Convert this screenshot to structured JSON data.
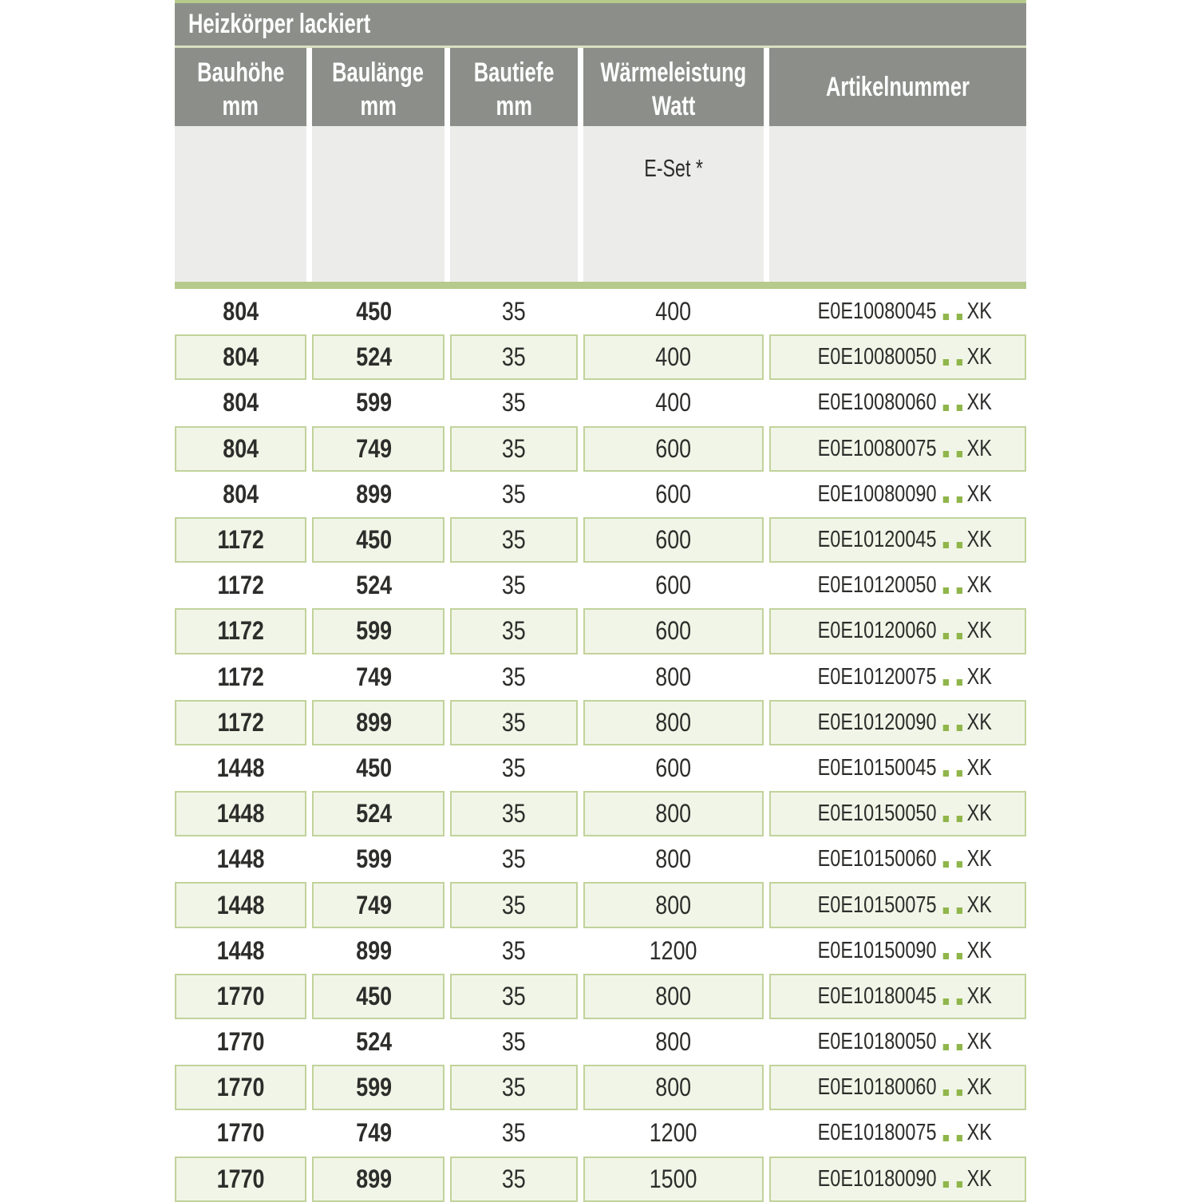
{
  "table": {
    "title": "Heizkörper lackiert",
    "columns": [
      {
        "line1": "Bauhöhe",
        "line2": "mm"
      },
      {
        "line1": "Baulänge",
        "line2": "mm"
      },
      {
        "line1": "Bautiefe",
        "line2": "mm"
      },
      {
        "line1": "Wärmeleistung",
        "line2": "Watt"
      },
      {
        "line1": "Artikelnummer",
        "line2": ""
      }
    ],
    "subheader": {
      "eset_label": "E-Set *"
    },
    "rows": [
      {
        "bauhoehe": "804",
        "baulaenge": "450",
        "bautiefe": "35",
        "watt": "400",
        "article_prefix": "E0E10080045",
        "article_suffix": "XK"
      },
      {
        "bauhoehe": "804",
        "baulaenge": "524",
        "bautiefe": "35",
        "watt": "400",
        "article_prefix": "E0E10080050",
        "article_suffix": "XK"
      },
      {
        "bauhoehe": "804",
        "baulaenge": "599",
        "bautiefe": "35",
        "watt": "400",
        "article_prefix": "E0E10080060",
        "article_suffix": "XK"
      },
      {
        "bauhoehe": "804",
        "baulaenge": "749",
        "bautiefe": "35",
        "watt": "600",
        "article_prefix": "E0E10080075",
        "article_suffix": "XK"
      },
      {
        "bauhoehe": "804",
        "baulaenge": "899",
        "bautiefe": "35",
        "watt": "600",
        "article_prefix": "E0E10080090",
        "article_suffix": "XK"
      },
      {
        "bauhoehe": "1172",
        "baulaenge": "450",
        "bautiefe": "35",
        "watt": "600",
        "article_prefix": "E0E10120045",
        "article_suffix": "XK"
      },
      {
        "bauhoehe": "1172",
        "baulaenge": "524",
        "bautiefe": "35",
        "watt": "600",
        "article_prefix": "E0E10120050",
        "article_suffix": "XK"
      },
      {
        "bauhoehe": "1172",
        "baulaenge": "599",
        "bautiefe": "35",
        "watt": "600",
        "article_prefix": "E0E10120060",
        "article_suffix": "XK"
      },
      {
        "bauhoehe": "1172",
        "baulaenge": "749",
        "bautiefe": "35",
        "watt": "800",
        "article_prefix": "E0E10120075",
        "article_suffix": "XK"
      },
      {
        "bauhoehe": "1172",
        "baulaenge": "899",
        "bautiefe": "35",
        "watt": "800",
        "article_prefix": "E0E10120090",
        "article_suffix": "XK"
      },
      {
        "bauhoehe": "1448",
        "baulaenge": "450",
        "bautiefe": "35",
        "watt": "600",
        "article_prefix": "E0E10150045",
        "article_suffix": "XK"
      },
      {
        "bauhoehe": "1448",
        "baulaenge": "524",
        "bautiefe": "35",
        "watt": "800",
        "article_prefix": "E0E10150050",
        "article_suffix": "XK"
      },
      {
        "bauhoehe": "1448",
        "baulaenge": "599",
        "bautiefe": "35",
        "watt": "800",
        "article_prefix": "E0E10150060",
        "article_suffix": "XK"
      },
      {
        "bauhoehe": "1448",
        "baulaenge": "749",
        "bautiefe": "35",
        "watt": "800",
        "article_prefix": "E0E10150075",
        "article_suffix": "XK"
      },
      {
        "bauhoehe": "1448",
        "baulaenge": "899",
        "bautiefe": "35",
        "watt": "1200",
        "article_prefix": "E0E10150090",
        "article_suffix": "XK"
      },
      {
        "bauhoehe": "1770",
        "baulaenge": "450",
        "bautiefe": "35",
        "watt": "800",
        "article_prefix": "E0E10180045",
        "article_suffix": "XK"
      },
      {
        "bauhoehe": "1770",
        "baulaenge": "524",
        "bautiefe": "35",
        "watt": "800",
        "article_prefix": "E0E10180050",
        "article_suffix": "XK"
      },
      {
        "bauhoehe": "1770",
        "baulaenge": "599",
        "bautiefe": "35",
        "watt": "800",
        "article_prefix": "E0E10180060",
        "article_suffix": "XK"
      },
      {
        "bauhoehe": "1770",
        "baulaenge": "749",
        "bautiefe": "35",
        "watt": "1200",
        "article_prefix": "E0E10180075",
        "article_suffix": "XK"
      },
      {
        "bauhoehe": "1770",
        "baulaenge": "899",
        "bautiefe": "35",
        "watt": "1500",
        "article_prefix": "E0E10180090",
        "article_suffix": "XK"
      }
    ]
  },
  "colors": {
    "header_gray": "#8c8f89",
    "subheader_gray": "#ececeb",
    "green_band": "#b5ca8b",
    "thin_line": "#d7e0bf",
    "row_green_fill": "#f1f5e7",
    "row_green_border": "#c1d39b",
    "dot_green": "#90b64b",
    "text_dark": "#2d2d2b"
  }
}
